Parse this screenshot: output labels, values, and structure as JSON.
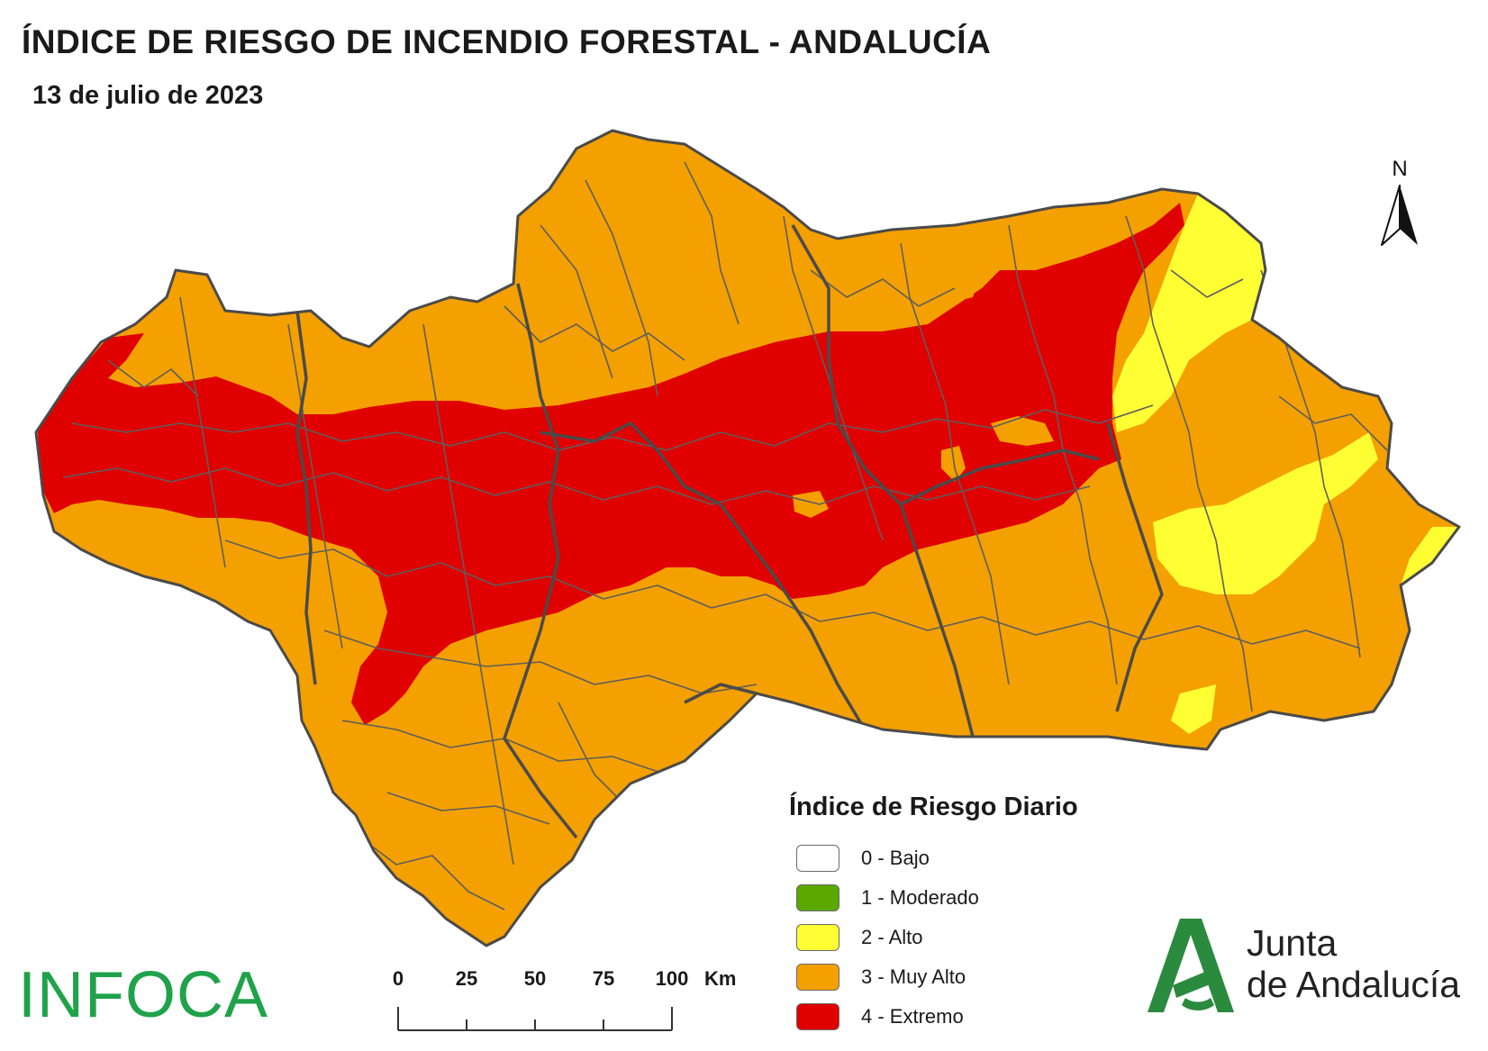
{
  "map": {
    "title": "ÍNDICE DE RIESGO DE INCENDIO FORESTAL - ANDALUCÍA",
    "date": "13 de julio de 2023"
  },
  "north_arrow": {
    "label": "N"
  },
  "legend": {
    "title": "Índice de Riesgo Diario",
    "items": [
      {
        "label": "0 - Bajo",
        "color": "#ffffff"
      },
      {
        "label": "1 - Moderado",
        "color": "#5aa800"
      },
      {
        "label": "2 - Alto",
        "color": "#ffff33"
      },
      {
        "label": "3 - Muy Alto",
        "color": "#f4a000"
      },
      {
        "label": "4 - Extremo",
        "color": "#e00000"
      }
    ]
  },
  "scale": {
    "ticks": [
      "0",
      "25",
      "50",
      "75",
      "100"
    ],
    "unit": "Km"
  },
  "logos": {
    "infoca": "INFOCA",
    "junta_line1": "Junta",
    "junta_line2": "de Andalucía",
    "junta_color": "#2a8a3e"
  },
  "colors": {
    "boundary": "#5e5e5e"
  }
}
